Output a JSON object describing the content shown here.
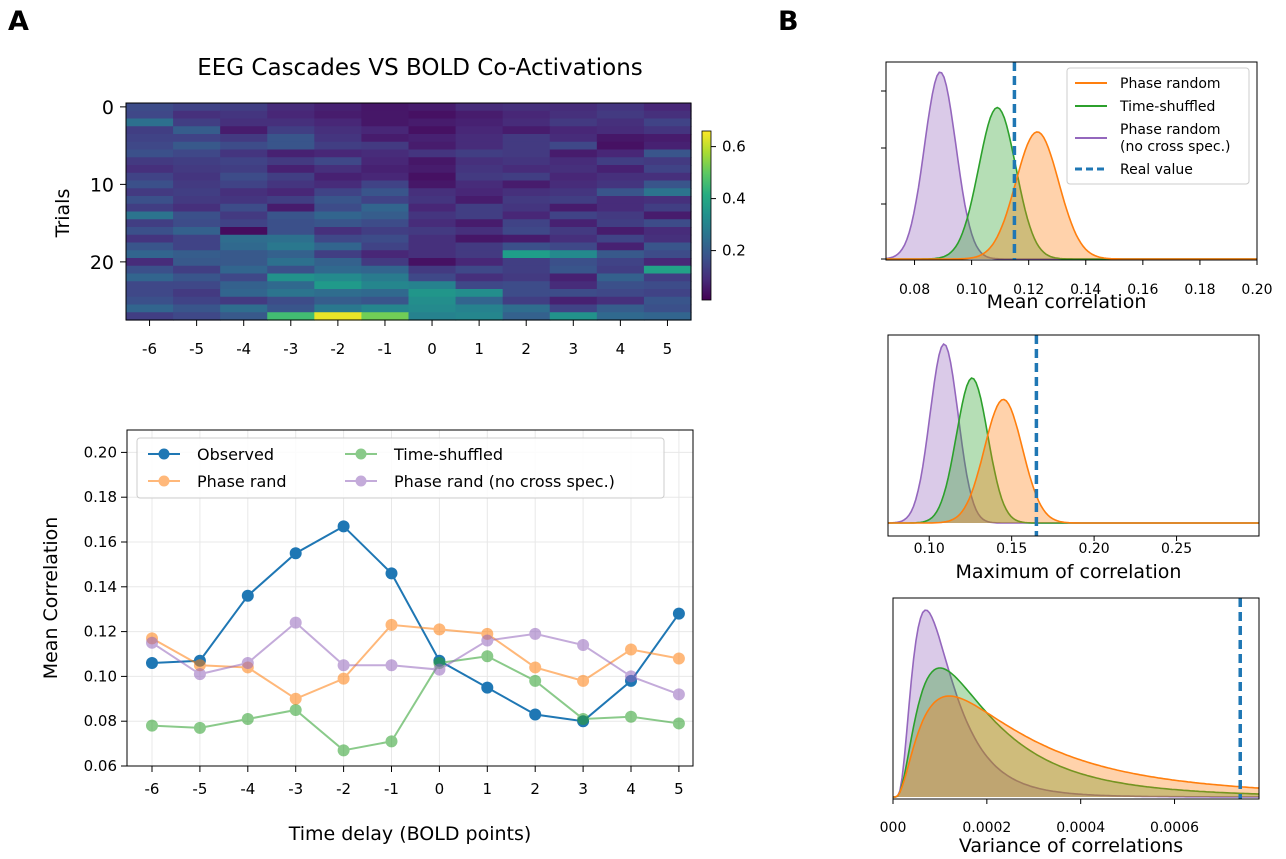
{
  "panel_labels": [
    "A",
    "B"
  ],
  "colors": {
    "observed": "#1f77b4",
    "phase_rand": "#ff7f0e",
    "time_shuffled": "#2ca02c",
    "phase_rand_no_cross": "#9467bd",
    "real_value": "#1f77b4"
  },
  "chart_data": [
    {
      "id": "heatmap",
      "type": "heatmap",
      "title": "EEG Cascades VS BOLD Co-Activations",
      "xlabel": "",
      "ylabel": "Trials",
      "x_tick_labels": [
        "-6",
        "-5",
        "-4",
        "-3",
        "-2",
        "-1",
        "0",
        "1",
        "2",
        "3",
        "4",
        "5"
      ],
      "y_tick_labels": [
        "0",
        "10",
        "20"
      ],
      "y_ticks": [
        0,
        10,
        20
      ],
      "n_rows": 28,
      "colormap": "viridis",
      "colorbar_range": [
        0.01,
        0.66
      ],
      "colorbar_ticks": [
        0.2,
        0.4,
        0.6
      ],
      "colorbar_tick_labels": [
        "0.2",
        "0.4",
        "0.6"
      ],
      "values": [
        [
          0.16,
          0.14,
          0.13,
          0.09,
          0.07,
          0.05,
          0.06,
          0.09,
          0.1,
          0.09,
          0.11,
          0.08
        ],
        [
          0.15,
          0.1,
          0.11,
          0.08,
          0.06,
          0.05,
          0.04,
          0.06,
          0.08,
          0.1,
          0.12,
          0.1
        ],
        [
          0.25,
          0.13,
          0.1,
          0.1,
          0.08,
          0.05,
          0.06,
          0.07,
          0.09,
          0.12,
          0.1,
          0.14
        ],
        [
          0.13,
          0.2,
          0.06,
          0.13,
          0.1,
          0.08,
          0.04,
          0.08,
          0.06,
          0.08,
          0.09,
          0.11
        ],
        [
          0.14,
          0.14,
          0.12,
          0.18,
          0.11,
          0.06,
          0.07,
          0.09,
          0.12,
          0.09,
          0.05,
          0.06
        ],
        [
          0.15,
          0.19,
          0.16,
          0.18,
          0.13,
          0.12,
          0.06,
          0.09,
          0.12,
          0.15,
          0.04,
          0.07
        ],
        [
          0.17,
          0.15,
          0.11,
          0.07,
          0.08,
          0.09,
          0.11,
          0.13,
          0.12,
          0.06,
          0.08,
          0.18
        ],
        [
          0.12,
          0.13,
          0.14,
          0.12,
          0.15,
          0.08,
          0.05,
          0.1,
          0.11,
          0.09,
          0.13,
          0.12
        ],
        [
          0.1,
          0.12,
          0.13,
          0.07,
          0.1,
          0.07,
          0.06,
          0.11,
          0.09,
          0.1,
          0.07,
          0.14
        ],
        [
          0.14,
          0.11,
          0.16,
          0.13,
          0.07,
          0.08,
          0.04,
          0.12,
          0.13,
          0.08,
          0.1,
          0.1
        ],
        [
          0.17,
          0.12,
          0.14,
          0.11,
          0.09,
          0.14,
          0.05,
          0.09,
          0.06,
          0.09,
          0.11,
          0.18
        ],
        [
          0.12,
          0.13,
          0.1,
          0.08,
          0.14,
          0.18,
          0.1,
          0.08,
          0.1,
          0.11,
          0.18,
          0.26
        ],
        [
          0.17,
          0.12,
          0.11,
          0.13,
          0.18,
          0.14,
          0.11,
          0.06,
          0.12,
          0.13,
          0.09,
          0.1
        ],
        [
          0.13,
          0.1,
          0.16,
          0.06,
          0.16,
          0.22,
          0.08,
          0.13,
          0.11,
          0.06,
          0.09,
          0.13
        ],
        [
          0.26,
          0.17,
          0.12,
          0.18,
          0.22,
          0.2,
          0.11,
          0.13,
          0.08,
          0.14,
          0.12,
          0.06
        ],
        [
          0.13,
          0.16,
          0.14,
          0.17,
          0.18,
          0.16,
          0.09,
          0.06,
          0.14,
          0.07,
          0.13,
          0.16
        ],
        [
          0.17,
          0.21,
          0.03,
          0.17,
          0.1,
          0.13,
          0.12,
          0.1,
          0.15,
          0.12,
          0.06,
          0.09
        ],
        [
          0.11,
          0.14,
          0.24,
          0.25,
          0.15,
          0.16,
          0.1,
          0.05,
          0.06,
          0.1,
          0.14,
          0.1
        ],
        [
          0.18,
          0.14,
          0.23,
          0.27,
          0.22,
          0.14,
          0.1,
          0.12,
          0.17,
          0.15,
          0.07,
          0.18
        ],
        [
          0.22,
          0.2,
          0.19,
          0.21,
          0.13,
          0.08,
          0.1,
          0.12,
          0.37,
          0.32,
          0.19,
          0.16
        ],
        [
          0.09,
          0.19,
          0.19,
          0.25,
          0.21,
          0.12,
          0.04,
          0.08,
          0.13,
          0.17,
          0.14,
          0.08
        ],
        [
          0.17,
          0.13,
          0.22,
          0.17,
          0.23,
          0.22,
          0.12,
          0.15,
          0.13,
          0.18,
          0.13,
          0.38
        ],
        [
          0.22,
          0.18,
          0.15,
          0.34,
          0.32,
          0.28,
          0.15,
          0.1,
          0.12,
          0.07,
          0.21,
          0.13
        ],
        [
          0.15,
          0.15,
          0.21,
          0.23,
          0.36,
          0.31,
          0.3,
          0.15,
          0.16,
          0.09,
          0.17,
          0.16
        ],
        [
          0.15,
          0.12,
          0.22,
          0.26,
          0.24,
          0.23,
          0.35,
          0.33,
          0.16,
          0.16,
          0.15,
          0.14
        ],
        [
          0.17,
          0.14,
          0.12,
          0.16,
          0.2,
          0.18,
          0.33,
          0.22,
          0.13,
          0.07,
          0.1,
          0.18
        ],
        [
          0.22,
          0.18,
          0.24,
          0.18,
          0.27,
          0.31,
          0.32,
          0.3,
          0.24,
          0.14,
          0.2,
          0.17
        ],
        [
          0.13,
          0.15,
          0.19,
          0.46,
          0.64,
          0.52,
          0.3,
          0.31,
          0.21,
          0.34,
          0.23,
          0.22
        ]
      ]
    },
    {
      "id": "lines",
      "type": "line",
      "xlabel": "Time delay (BOLD points)",
      "ylabel": "Mean Correlation",
      "x": [
        -6,
        -5,
        -4,
        -3,
        -2,
        -1,
        0,
        1,
        2,
        3,
        4,
        5
      ],
      "x_tick_labels": [
        "-6",
        "-5",
        "-4",
        "-3",
        "-2",
        "-1",
        "0",
        "1",
        "2",
        "3",
        "4",
        "5"
      ],
      "ylim": [
        0.06,
        0.21
      ],
      "y_ticks": [
        0.06,
        0.08,
        0.1,
        0.12,
        0.14,
        0.16,
        0.18,
        0.2
      ],
      "y_tick_labels": [
        "0.06",
        "0.08",
        "0.10",
        "0.12",
        "0.14",
        "0.16",
        "0.18",
        "0.20"
      ],
      "grid": true,
      "legend_position": "top",
      "series": [
        {
          "name": "Observed",
          "key": "observed",
          "alpha": 1.0,
          "values": [
            0.106,
            0.107,
            0.136,
            0.155,
            0.167,
            0.146,
            0.107,
            0.095,
            0.083,
            0.08,
            0.098,
            0.128
          ]
        },
        {
          "name": "Time-shuffled",
          "key": "time_shuffled",
          "alpha": 0.55,
          "values": [
            0.078,
            0.077,
            0.081,
            0.085,
            0.067,
            0.071,
            0.106,
            0.109,
            0.098,
            0.081,
            0.082,
            0.079
          ]
        },
        {
          "name": "Phase rand",
          "key": "phase_rand",
          "alpha": 0.55,
          "values": [
            0.117,
            0.105,
            0.104,
            0.09,
            0.099,
            0.123,
            0.121,
            0.119,
            0.104,
            0.098,
            0.112,
            0.108
          ]
        },
        {
          "name": "Phase rand (no cross spec.)",
          "key": "phase_rand_no_cross",
          "alpha": 0.55,
          "values": [
            0.115,
            0.101,
            0.106,
            0.124,
            0.105,
            0.105,
            0.103,
            0.116,
            0.119,
            0.114,
            0.1,
            0.092
          ]
        }
      ]
    },
    {
      "id": "dist_mean",
      "type": "area",
      "xlabel": "Mean correlation",
      "xlim": [
        0.07,
        0.2
      ],
      "x_ticks": [
        0.08,
        0.1,
        0.12,
        0.14,
        0.16,
        0.18,
        0.2
      ],
      "x_tick_labels": [
        "0.08",
        "0.10",
        "0.12",
        "0.14",
        "0.16",
        "0.18",
        "0.20"
      ],
      "real_value": 0.115,
      "legend_position": "top-right",
      "legend": [
        {
          "label": "Phase random",
          "key": "phase_rand",
          "style": "line"
        },
        {
          "label": "Time-shuffled",
          "key": "time_shuffled",
          "style": "line"
        },
        {
          "label": "Phase random\n(no cross spec.)",
          "key": "phase_rand_no_cross",
          "style": "line"
        },
        {
          "label": "Real value",
          "key": "real_value",
          "style": "dashed"
        }
      ],
      "densities": [
        {
          "key": "phase_rand_no_cross",
          "mean": 0.089,
          "sd": 0.0055,
          "amplitude": 1.0
        },
        {
          "key": "time_shuffled",
          "mean": 0.109,
          "sd": 0.0065,
          "amplitude": 0.81
        },
        {
          "key": "phase_rand",
          "mean": 0.123,
          "sd": 0.0075,
          "amplitude": 0.68
        }
      ]
    },
    {
      "id": "dist_max",
      "type": "area",
      "xlabel": "Maximum of correlation",
      "xlim": [
        0.075,
        0.3
      ],
      "x_ticks": [
        0.1,
        0.15,
        0.2,
        0.25
      ],
      "x_tick_labels": [
        "0.10",
        "0.15",
        "0.20",
        "0.25"
      ],
      "real_value": 0.165,
      "densities": [
        {
          "key": "phase_rand_no_cross",
          "mean": 0.109,
          "sd": 0.0085,
          "amplitude": 1.0
        },
        {
          "key": "time_shuffled",
          "mean": 0.126,
          "sd": 0.0095,
          "amplitude": 0.81
        },
        {
          "key": "phase_rand",
          "mean": 0.145,
          "sd": 0.0115,
          "amplitude": 0.69
        }
      ]
    },
    {
      "id": "dist_var",
      "type": "area",
      "xlabel": "Variance of correlations",
      "xlim": [
        0.0,
        0.00078
      ],
      "x_ticks": [
        0.0,
        0.0002,
        0.0004,
        0.0006
      ],
      "x_tick_labels": [
        "000",
        "0.0002",
        "0.0004",
        "0.0006"
      ],
      "real_value": 0.00074,
      "densities": [
        {
          "key": "phase_rand_no_cross",
          "mode": 7e-05,
          "sigma": 0.6,
          "amplitude": 1.0
        },
        {
          "key": "time_shuffled",
          "mode": 0.0001,
          "sigma": 0.75,
          "amplitude": 0.69
        },
        {
          "key": "phase_rand",
          "mode": 0.00012,
          "sigma": 0.85,
          "amplitude": 0.54
        }
      ]
    }
  ]
}
